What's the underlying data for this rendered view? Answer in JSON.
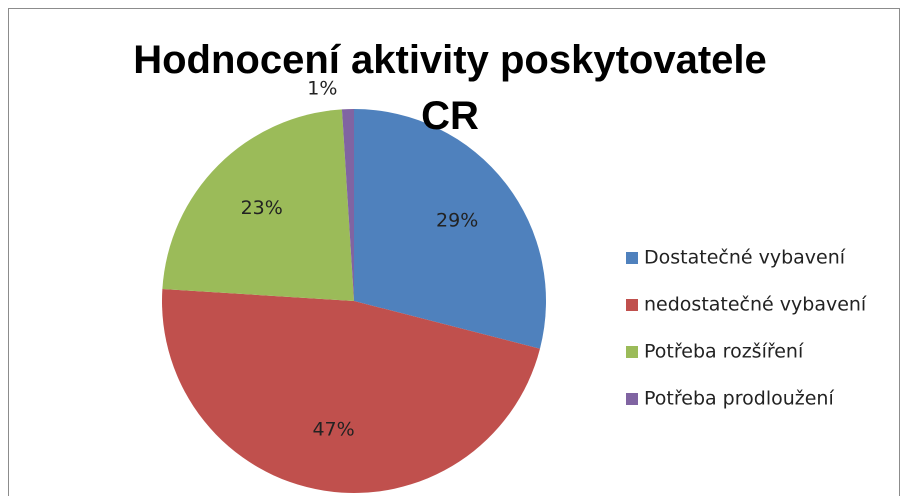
{
  "chart_data": {
    "type": "pie",
    "title": "Hodnocení aktivity poskytovatele CR",
    "categories": [
      "Dostatečné vybavení",
      "nedostatečné vybavení",
      "Potřeba rozšíření",
      "Potřeba prodloužení"
    ],
    "values": [
      29,
      47,
      23,
      1
    ],
    "value_labels": [
      "29%",
      "47%",
      "23%",
      "1%"
    ],
    "colors": [
      "#4f81bd",
      "#c0504d",
      "#9bbb59",
      "#8064a2"
    ],
    "legend": "right"
  }
}
